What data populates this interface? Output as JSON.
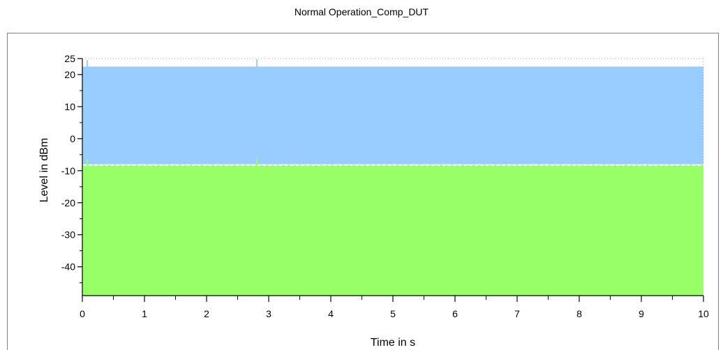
{
  "chart_data": {
    "type": "area",
    "title": "Normal Operation_Comp_DUT",
    "xlabel": "Time in s",
    "ylabel": "Level in dBm",
    "xlim": [
      0,
      10
    ],
    "ylim": [
      -49,
      25
    ],
    "x_ticks": [
      "0",
      "1",
      "2",
      "3",
      "4",
      "5",
      "6",
      "7",
      "8",
      "9",
      "10"
    ],
    "y_ticks": [
      "25",
      "20",
      "10",
      "0",
      "-10",
      "-20",
      "-30",
      "-40"
    ],
    "grid": "dotted top border only",
    "legend": "none",
    "series": [
      {
        "color": "#99ccff",
        "fill_between": [
          -8,
          22.5
        ],
        "spikes": [
          {
            "x": 0.08,
            "y": 24.5
          },
          {
            "x": 2.81,
            "y": 24.8
          }
        ]
      },
      {
        "color": "#99ff66",
        "fill_between": [
          -49,
          -8
        ],
        "ripple_amplitude": 0.6,
        "spikes": [
          {
            "x": 0.08,
            "y": -6.5
          },
          {
            "x": 2.81,
            "y": -6.2
          }
        ]
      }
    ]
  }
}
